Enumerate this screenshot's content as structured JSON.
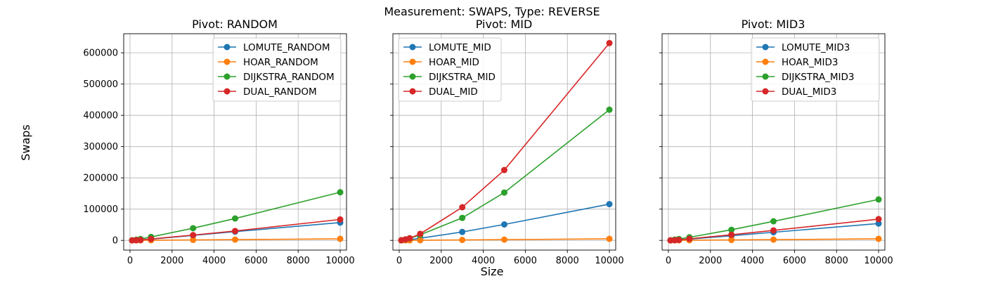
{
  "figure": {
    "suptitle": "Measurement: SWAPS, Type: REVERSE",
    "xlabel": "Size",
    "ylabel": "Swaps"
  },
  "colors": {
    "LOMUTE": "#1f77b4",
    "HOAR": "#ff7f0e",
    "DIJKSTRA": "#2ca02c",
    "DUAL": "#d62728",
    "grid": "#b0b0b0"
  },
  "chart_data": [
    {
      "type": "line",
      "title": "Pivot: RANDOM",
      "legend_position": "top-right",
      "grid": true,
      "xlim": [
        -300,
        10300
      ],
      "ylim": [
        -31000,
        661000
      ],
      "xticks": [
        0,
        2000,
        4000,
        6000,
        8000,
        10000
      ],
      "yticks": [
        0,
        100000,
        200000,
        300000,
        400000,
        500000,
        600000
      ],
      "x": [
        100,
        300,
        500,
        1000,
        3000,
        5000,
        10000
      ],
      "series": [
        {
          "name": "LOMUTE_RANDOM",
          "key": "LOMUTE",
          "values": [
            100,
            500,
            1200,
            4000,
            16000,
            28000,
            57000
          ]
        },
        {
          "name": "HOAR_RANDOM",
          "key": "HOAR",
          "values": [
            50,
            150,
            250,
            500,
            1500,
            2500,
            5000
          ]
        },
        {
          "name": "DIJKSTRA_RANDOM",
          "key": "DIJKSTRA",
          "values": [
            500,
            2000,
            4500,
            11000,
            39000,
            70000,
            154000
          ]
        },
        {
          "name": "DUAL_RANDOM",
          "key": "DUAL",
          "values": [
            150,
            600,
            1300,
            4500,
            17000,
            30000,
            67000
          ]
        }
      ]
    },
    {
      "type": "line",
      "title": "Pivot: MID",
      "legend_position": "top-left",
      "grid": true,
      "xlim": [
        -300,
        10300
      ],
      "ylim": [
        -31000,
        661000
      ],
      "xticks": [
        0,
        2000,
        4000,
        6000,
        8000,
        10000
      ],
      "yticks": [
        0,
        100000,
        200000,
        300000,
        400000,
        500000,
        600000
      ],
      "x": [
        100,
        300,
        500,
        1000,
        3000,
        5000,
        10000
      ],
      "series": [
        {
          "name": "LOMUTE_MID",
          "key": "LOMUTE",
          "values": [
            100,
            700,
            1800,
            7000,
            27000,
            51000,
            116000
          ]
        },
        {
          "name": "HOAR_MID",
          "key": "HOAR",
          "values": [
            50,
            150,
            250,
            500,
            1500,
            2500,
            5000
          ]
        },
        {
          "name": "DIJKSTRA_MID",
          "key": "DIJKSTRA",
          "values": [
            600,
            3000,
            6500,
            18000,
            72000,
            153000,
            418000
          ]
        },
        {
          "name": "DUAL_MID",
          "key": "DUAL",
          "values": [
            600,
            3200,
            7000,
            21000,
            106000,
            225000,
            631000
          ]
        }
      ]
    },
    {
      "type": "line",
      "title": "Pivot: MID3",
      "legend_position": "top-right",
      "grid": true,
      "xlim": [
        -300,
        10300
      ],
      "ylim": [
        -31000,
        661000
      ],
      "xticks": [
        0,
        2000,
        4000,
        6000,
        8000,
        10000
      ],
      "yticks": [
        0,
        100000,
        200000,
        300000,
        400000,
        500000,
        600000
      ],
      "x": [
        100,
        300,
        500,
        1000,
        3000,
        5000,
        10000
      ],
      "series": [
        {
          "name": "LOMUTE_MID3",
          "key": "LOMUTE",
          "values": [
            100,
            500,
            1200,
            4000,
            15000,
            26000,
            54000
          ]
        },
        {
          "name": "HOAR_MID3",
          "key": "HOAR",
          "values": [
            50,
            150,
            250,
            500,
            1500,
            2500,
            5000
          ]
        },
        {
          "name": "DIJKSTRA_MID3",
          "key": "DIJKSTRA",
          "values": [
            500,
            2500,
            4500,
            10000,
            34000,
            61000,
            131000
          ]
        },
        {
          "name": "DUAL_MID3",
          "key": "DUAL",
          "values": [
            150,
            700,
            1500,
            5000,
            18000,
            32000,
            68000
          ]
        }
      ]
    }
  ]
}
